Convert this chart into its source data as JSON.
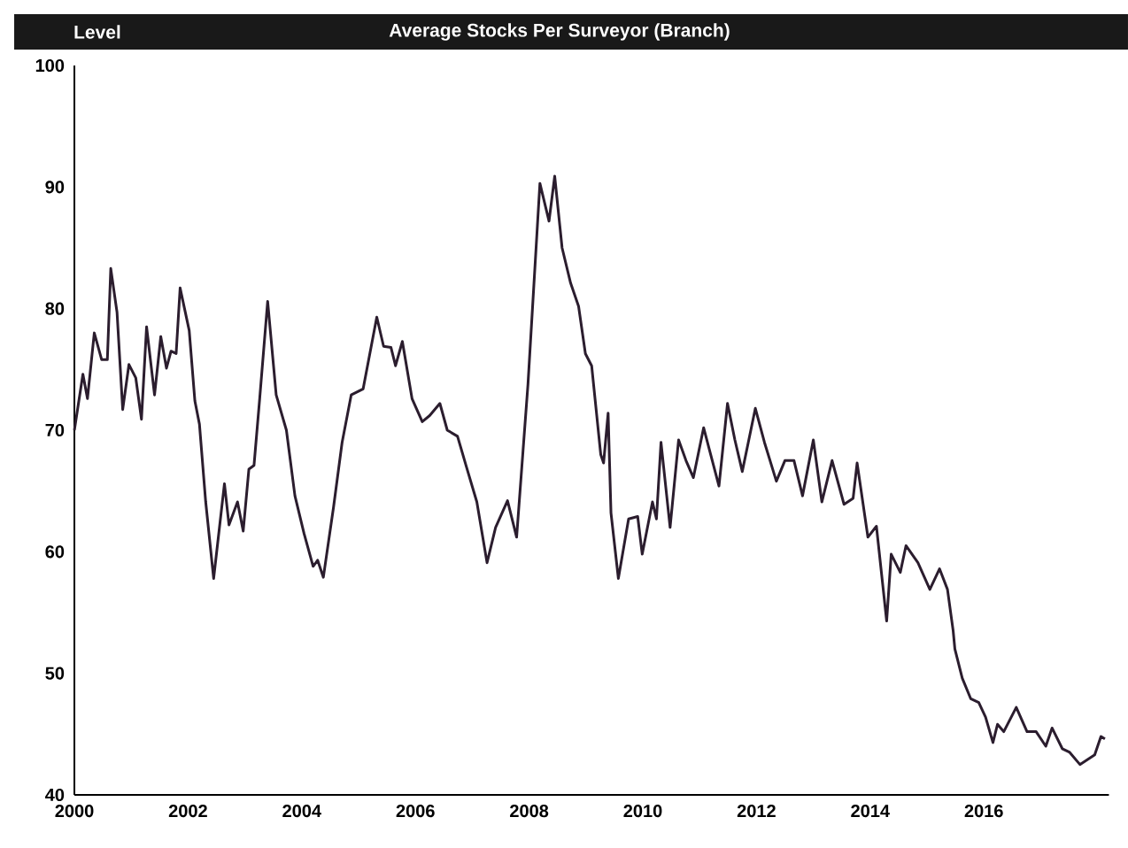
{
  "chart_data": {
    "type": "line",
    "title": "Average Stocks Per Surveyor (Branch)",
    "ylabel": "Level",
    "xlim": [
      2000,
      2018.2
    ],
    "xticks": [
      2000,
      2002,
      2004,
      2006,
      2008,
      2010,
      2012,
      2014,
      2016
    ],
    "ylim": [
      40,
      100
    ],
    "yticks": [
      40,
      50,
      60,
      70,
      80,
      90,
      100
    ],
    "grid": false,
    "line_style": "solid",
    "series": [
      {
        "color": "#2b1d2e",
        "x": [
          2000.0,
          2000.15,
          2000.23,
          2000.35,
          2000.48,
          2000.58,
          2000.64,
          2000.75,
          2000.85,
          2000.96,
          2001.08,
          2001.18,
          2001.27,
          2001.41,
          2001.52,
          2001.62,
          2001.7,
          2001.79,
          2001.86,
          2002.02,
          2002.12,
          2002.2,
          2002.31,
          2002.45,
          2002.64,
          2002.72,
          2002.87,
          2002.97,
          2003.07,
          2003.16,
          2003.26,
          2003.4,
          2003.55,
          2003.73,
          2003.88,
          2004.04,
          2004.2,
          2004.28,
          2004.38,
          2004.56,
          2004.71,
          2004.87,
          2005.08,
          2005.32,
          2005.44,
          2005.57,
          2005.65,
          2005.77,
          2005.94,
          2006.12,
          2006.25,
          2006.43,
          2006.56,
          2006.74,
          2006.89,
          2007.08,
          2007.26,
          2007.41,
          2007.62,
          2007.78,
          2007.98,
          2008.19,
          2008.35,
          2008.45,
          2008.58,
          2008.73,
          2008.87,
          2008.99,
          2009.1,
          2009.26,
          2009.31,
          2009.39,
          2009.44,
          2009.57,
          2009.75,
          2009.91,
          2009.99,
          2010.17,
          2010.24,
          2010.32,
          2010.48,
          2010.63,
          2010.76,
          2010.89,
          2011.07,
          2011.34,
          2011.49,
          2011.62,
          2011.75,
          2011.98,
          2012.14,
          2012.35,
          2012.5,
          2012.66,
          2012.81,
          2013.0,
          2013.15,
          2013.33,
          2013.54,
          2013.7,
          2013.77,
          2013.96,
          2014.11,
          2014.29,
          2014.37,
          2014.53,
          2014.63,
          2014.84,
          2015.05,
          2015.22,
          2015.36,
          2015.46,
          2015.49,
          2015.62,
          2015.77,
          2015.91,
          2016.03,
          2016.16,
          2016.24,
          2016.35,
          2016.57,
          2016.76,
          2016.92,
          2017.09,
          2017.2,
          2017.38,
          2017.51,
          2017.69,
          2017.95,
          2018.06,
          2018.13
        ],
        "values": [
          70.0,
          74.6,
          72.6,
          78.0,
          75.8,
          75.8,
          83.3,
          79.7,
          71.7,
          75.4,
          74.3,
          70.9,
          78.5,
          72.9,
          77.7,
          75.1,
          76.5,
          76.3,
          81.7,
          78.2,
          72.4,
          70.5,
          64.1,
          57.8,
          65.6,
          62.2,
          64.1,
          61.7,
          66.8,
          67.1,
          72.6,
          80.6,
          72.9,
          70.0,
          64.6,
          61.5,
          58.8,
          59.3,
          57.9,
          63.7,
          69.0,
          72.9,
          73.4,
          79.3,
          76.9,
          76.8,
          75.3,
          77.3,
          72.6,
          70.7,
          71.2,
          72.2,
          70.0,
          69.5,
          67.1,
          64.1,
          59.1,
          62.0,
          64.2,
          61.2,
          73.8,
          90.3,
          87.2,
          90.9,
          85.0,
          82.1,
          80.2,
          76.3,
          75.3,
          68.0,
          67.3,
          71.4,
          63.2,
          57.8,
          62.7,
          62.9,
          59.8,
          64.1,
          62.7,
          69.0,
          62.0,
          69.2,
          67.5,
          66.1,
          70.2,
          65.4,
          72.2,
          69.2,
          66.6,
          71.8,
          69.0,
          65.8,
          67.5,
          67.5,
          64.6,
          69.2,
          64.1,
          67.5,
          63.9,
          64.4,
          67.3,
          61.2,
          62.1,
          54.3,
          59.8,
          58.3,
          60.5,
          59.1,
          56.9,
          58.6,
          56.9,
          53.5,
          52.0,
          49.6,
          47.9,
          47.6,
          46.4,
          44.3,
          45.8,
          45.2,
          47.2,
          45.2,
          45.2,
          44.0,
          45.5,
          43.8,
          43.5,
          42.5,
          43.3,
          44.8,
          44.6
        ]
      }
    ]
  }
}
